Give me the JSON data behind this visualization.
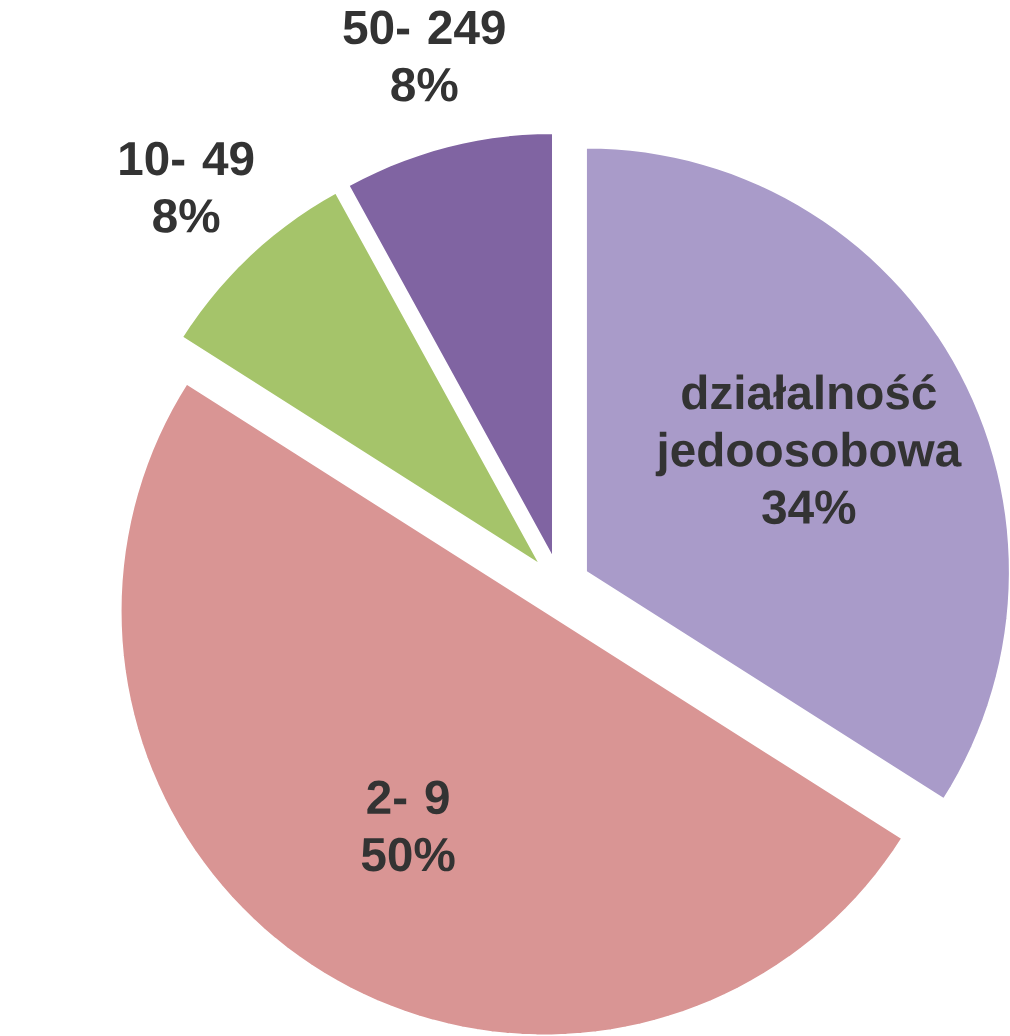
{
  "chart_data": {
    "type": "pie",
    "categories": [
      "działalność jedoosobowa",
      "2- 9",
      "10- 49",
      "50- 249"
    ],
    "values": [
      34,
      50,
      8,
      8
    ],
    "colors": [
      "#a99bc9",
      "#d99594",
      "#a5c46a",
      "#8064a2"
    ],
    "value_labels": [
      "34%",
      "50%",
      "8%",
      "8%"
    ]
  }
}
